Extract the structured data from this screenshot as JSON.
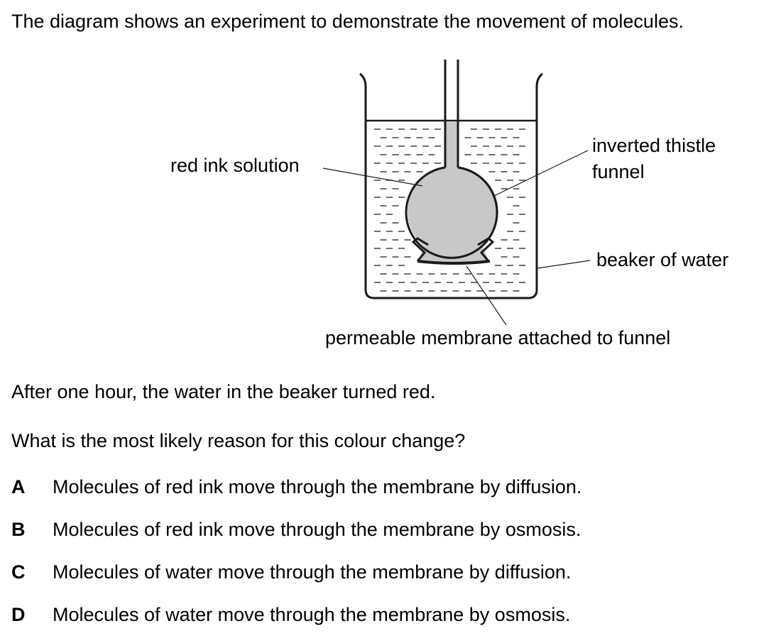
{
  "intro": "The diagram shows an experiment to demonstrate the movement of molecules.",
  "diagram": {
    "labels": {
      "red_ink": "red ink solution",
      "funnel_line1": "inverted thistle",
      "funnel_line2": "funnel",
      "beaker": "beaker of water",
      "membrane": "permeable membrane attached to funnel"
    },
    "colors": {
      "ink_fill": "#c8c8c8",
      "stroke": "#1a1a1a"
    }
  },
  "result": "After one hour, the water in the beaker turned red.",
  "question": "What is the most likely reason for this colour change?",
  "options": [
    {
      "letter": "A",
      "text": "Molecules of red ink move through the membrane by diffusion."
    },
    {
      "letter": "B",
      "text": "Molecules of red ink move through the membrane by osmosis."
    },
    {
      "letter": "C",
      "text": "Molecules of water move through the membrane by diffusion."
    },
    {
      "letter": "D",
      "text": "Molecules of water move through the membrane by osmosis."
    }
  ]
}
